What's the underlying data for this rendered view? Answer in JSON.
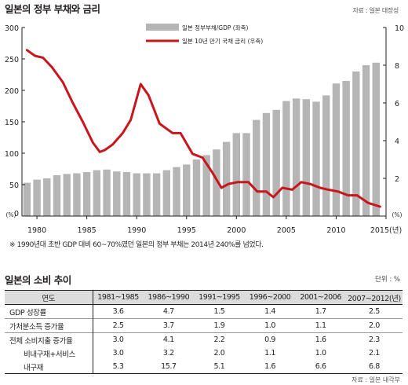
{
  "title": "일본의 정부 부채와 금리",
  "source": "자료 : 일본 대장성",
  "left_unit": "(%)",
  "right_unit": "(%)",
  "chart_data": {
    "type": "bar",
    "title": "일본의 정부 부채와 금리",
    "x": [
      1979,
      1980,
      1981,
      1982,
      1983,
      1984,
      1985,
      1986,
      1987,
      1988,
      1989,
      1990,
      1991,
      1992,
      1993,
      1994,
      1995,
      1996,
      1997,
      1998,
      1999,
      2000,
      2001,
      2002,
      2003,
      2004,
      2005,
      2006,
      2007,
      2008,
      2009,
      2010,
      2011,
      2012,
      2013,
      2014
    ],
    "xticks": [
      "1980",
      "1985",
      "1990",
      "1995",
      "2000",
      "2005",
      "2010",
      "2015(년)"
    ],
    "xtick_values": [
      1980,
      1985,
      1990,
      1995,
      2000,
      2005,
      2010,
      2015
    ],
    "xlim": [
      1978.5,
      2015
    ],
    "series": [
      {
        "name": "일본 정부부채/GDP (좌축)",
        "type": "bar",
        "axis": "left",
        "color": "#b5b5b5",
        "values": [
          53,
          58,
          60,
          65,
          67,
          68,
          70,
          73,
          74,
          71,
          70,
          68,
          68,
          68,
          73,
          78,
          82,
          90,
          97,
          106,
          118,
          132,
          132,
          153,
          164,
          169,
          183,
          187,
          186,
          182,
          192,
          211,
          215,
          230,
          240,
          244
        ]
      },
      {
        "name": "일본 10년 만기 국채 금리 (우축)",
        "type": "line",
        "axis": "right",
        "color": "#c8161d",
        "x": [
          1979.0,
          1979.8,
          1980.6,
          1981.5,
          1982.6,
          1983.6,
          1984.6,
          1985.6,
          1986.3,
          1986.8,
          1987.6,
          1988.6,
          1989.4,
          1990.4,
          1991.2,
          1992.3,
          1993.6,
          1994.4,
          1995.6,
          1996.6,
          1997.6,
          1998.5,
          1999.2,
          2000.1,
          2001.2,
          2002.1,
          2003.0,
          2003.7,
          2004.6,
          2005.6,
          2006.5,
          2007.4,
          2008.4,
          2009.2,
          2010.2,
          2011.2,
          2012.1,
          2013.2,
          2014.4
        ],
        "values": [
          8.8,
          8.5,
          8.4,
          7.9,
          7.1,
          6.0,
          5.0,
          3.9,
          3.4,
          3.5,
          3.8,
          4.4,
          5.1,
          7.0,
          6.4,
          4.9,
          4.4,
          4.4,
          3.3,
          3.1,
          2.3,
          1.5,
          1.7,
          1.8,
          1.8,
          1.3,
          1.3,
          1.0,
          1.5,
          1.4,
          1.8,
          1.7,
          1.5,
          1.4,
          1.3,
          1.1,
          1.1,
          0.7,
          0.5
        ]
      }
    ],
    "ylim_left": [
      0,
      300
    ],
    "ylim_right": [
      0,
      10
    ],
    "yticks_left": [
      0,
      50,
      100,
      150,
      200,
      250,
      300
    ],
    "yticks_right": [
      0,
      2,
      4,
      6,
      8,
      10
    ],
    "grid": false,
    "legend": "top-right"
  },
  "note": "※ 1990년대 초반 GDP 대비 60~70%였던 일본의 정부 부채는 2014년 240%를 넘었다.",
  "table": {
    "title": "일본의 소비 추이",
    "unit": "단위 : %",
    "header": [
      "연도",
      "1981~1985",
      "1986~1990",
      "1991~1995",
      "1996~2000",
      "2001~2006",
      "2007~2012(년)"
    ],
    "rows": [
      {
        "label": "GDP 성장률",
        "values": [
          "3.6",
          "4.7",
          "1.5",
          "1.4",
          "1.7",
          "2.5"
        ]
      },
      {
        "label": "가처분소득 증가율",
        "values": [
          "2.5",
          "3.7",
          "1.9",
          "1.0",
          "1.1",
          "2.0"
        ]
      },
      {
        "label": "전체 소비지출 증가율",
        "values": [
          "3.0",
          "4.1",
          "2.2",
          "0.9",
          "1.6",
          "2.3"
        ]
      },
      {
        "label": "비내구재+서비스",
        "values": [
          "3.0",
          "3.2",
          "2.0",
          "1.1",
          "1.0",
          "2.1"
        ]
      },
      {
        "label": "내구재",
        "values": [
          "5.3",
          "15.7",
          "5.1",
          "1.6",
          "6.6",
          "6.8"
        ]
      }
    ],
    "source": "자료 : 일본 내각부"
  }
}
